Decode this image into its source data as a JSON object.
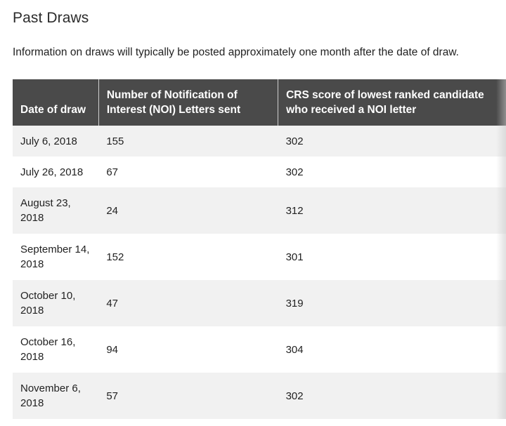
{
  "page": {
    "title": "Past Draws",
    "intro": "Information on draws will typically be posted approximately one month after the date of draw."
  },
  "table": {
    "headers": [
      "Date of draw",
      "Number of Notification of Interest (NOI) Letters sent",
      "CRS score of lowest ranked candidate who received a NOI letter"
    ],
    "rows": [
      {
        "date": "July 6, 2018",
        "noi": "155",
        "crs": "302"
      },
      {
        "date": "July 26, 2018",
        "noi": "67",
        "crs": "302"
      },
      {
        "date": "August 23, 2018",
        "noi": "24",
        "crs": "312"
      },
      {
        "date": "September 14, 2018",
        "noi": "152",
        "crs": "301"
      },
      {
        "date": "October 10, 2018",
        "noi": "47",
        "crs": "319"
      },
      {
        "date": "October 16, 2018",
        "noi": "94",
        "crs": "304"
      },
      {
        "date": "November 6, 2018",
        "noi": "57",
        "crs": "302"
      }
    ]
  },
  "colors": {
    "header_bg": "#4a4a4a",
    "header_text": "#ffffff",
    "row_stripe": "#f1f1f1",
    "row_plain": "#ffffff"
  }
}
